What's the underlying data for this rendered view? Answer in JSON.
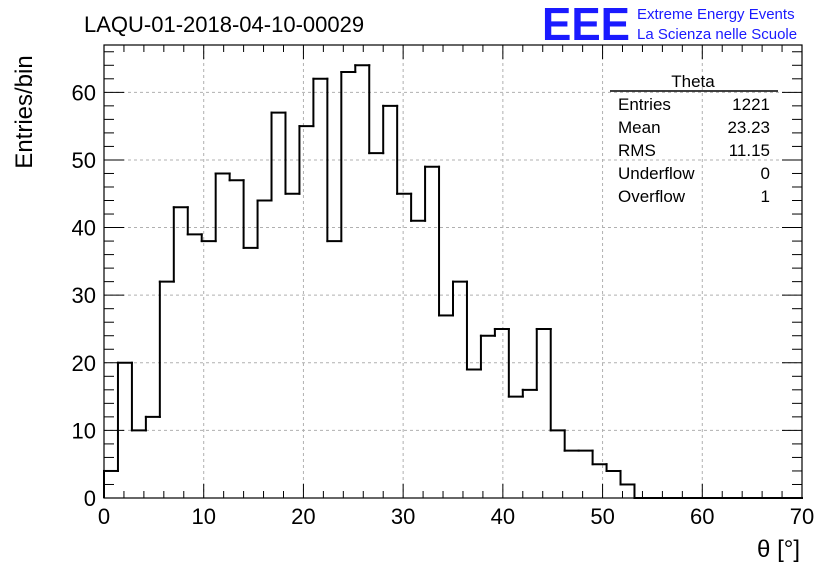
{
  "header": {
    "run_title": "LAQU-01-2018-04-10-00029",
    "logo_text": "EEE",
    "logo_line1": "Extreme Energy Events",
    "logo_line2": "La Scienza nelle Scuole",
    "logo_color": "#1a1aff"
  },
  "stats_box": {
    "title": "Theta",
    "rows": [
      {
        "label": "Entries",
        "value": "1221"
      },
      {
        "label": "Mean",
        "value": "23.23"
      },
      {
        "label": "RMS",
        "value": "11.15"
      },
      {
        "label": "Underflow",
        "value": "0"
      },
      {
        "label": "Overflow",
        "value": "1"
      }
    ]
  },
  "chart_data": {
    "type": "bar",
    "style": "step-histogram",
    "xlabel": "θ [°]",
    "ylabel": "Entries/bin",
    "xlim": [
      0,
      70
    ],
    "ylim": [
      0,
      67
    ],
    "grid": true,
    "bin_width": 1.4,
    "x_ticks": [
      "0",
      "10",
      "20",
      "30",
      "40",
      "50",
      "60",
      "70"
    ],
    "y_ticks": [
      "0",
      "10",
      "20",
      "30",
      "40",
      "50",
      "60"
    ],
    "bin_edges_start": 0,
    "values": [
      4,
      20,
      10,
      12,
      32,
      43,
      39,
      38,
      48,
      47,
      37,
      44,
      57,
      45,
      55,
      62,
      38,
      63,
      64,
      51,
      58,
      45,
      41,
      49,
      27,
      32,
      19,
      24,
      25,
      15,
      16,
      25,
      10,
      7,
      7,
      5,
      4,
      2,
      0,
      0,
      0,
      0,
      0,
      0,
      0,
      0,
      0,
      0,
      0,
      0
    ]
  }
}
